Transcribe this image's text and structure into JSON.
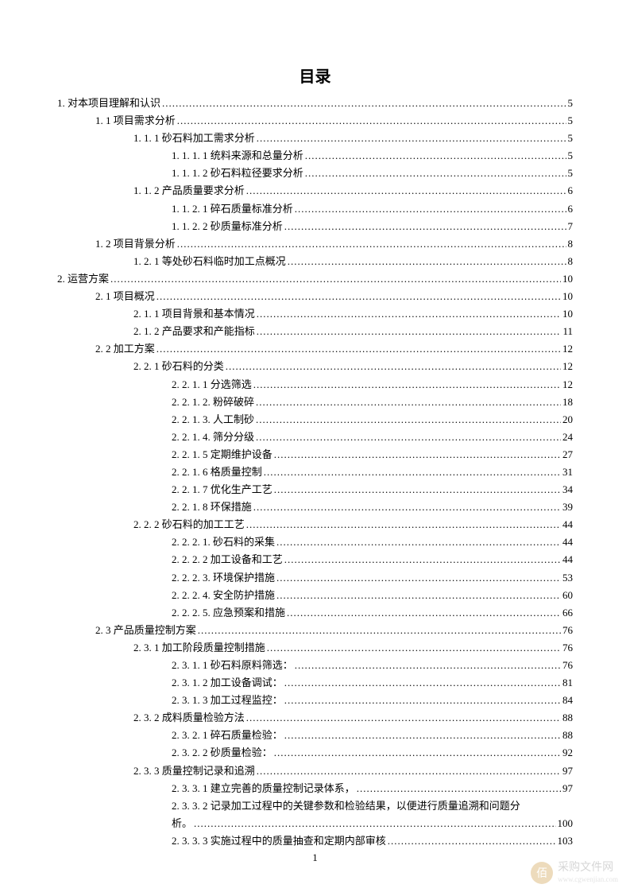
{
  "title": "目录",
  "page_number": "1",
  "text_color": "#000000",
  "background_color": "#ffffff",
  "font_size_body": 13,
  "font_size_title": 20,
  "line_height": 1.7,
  "watermark": {
    "icon_bg": "#d4a85a",
    "icon_text": "佰",
    "main": "采购文件网",
    "sub": "www.cgwenjian.com"
  },
  "entries": [
    {
      "indent": 0,
      "text": "1. 对本项目理解和认识",
      "page": "5"
    },
    {
      "indent": 1,
      "text": "1. 1 项目需求分析",
      "page": "5"
    },
    {
      "indent": 2,
      "text": "1. 1. 1 砂石料加工需求分析",
      "page": "5"
    },
    {
      "indent": 3,
      "text": "1. 1. 1. 1 统料来源和总量分析",
      "page": "5"
    },
    {
      "indent": 3,
      "text": "1. 1. 1. 2 砂石料粒径要求分析",
      "page": "5"
    },
    {
      "indent": 2,
      "text": "1. 1. 2 产品质量要求分析",
      "page": "6"
    },
    {
      "indent": 3,
      "text": "1. 1. 2. 1 碎石质量标准分析",
      "page": "6"
    },
    {
      "indent": 3,
      "text": "1. 1. 2. 2 砂质量标准分析",
      "page": "7"
    },
    {
      "indent": 1,
      "text": "1. 2 项目背景分析",
      "page": "8"
    },
    {
      "indent": 2,
      "text": "1. 2. 1 等处砂石料临时加工点概况",
      "page": "8"
    },
    {
      "indent": 0,
      "text": "2. 运营方案",
      "page": "10"
    },
    {
      "indent": 1,
      "text": "2. 1 项目概况",
      "page": "10"
    },
    {
      "indent": 2,
      "text": "2. 1. 1 项目背景和基本情况",
      "page": "10"
    },
    {
      "indent": 2,
      "text": "2. 1. 2 产品要求和产能指标",
      "page": "11"
    },
    {
      "indent": 1,
      "text": "2. 2 加工方案",
      "page": "12"
    },
    {
      "indent": 2,
      "text": "2. 2. 1 砂石料的分类",
      "page": "12"
    },
    {
      "indent": 3,
      "text": "2. 2. 1. 1 分选筛选",
      "page": "12"
    },
    {
      "indent": 3,
      "text": "2. 2. 1. 2. 粉碎破碎",
      "page": "18"
    },
    {
      "indent": 3,
      "text": "2. 2. 1. 3. 人工制砂",
      "page": "20"
    },
    {
      "indent": 3,
      "text": "2. 2. 1. 4. 筛分分级",
      "page": "24"
    },
    {
      "indent": 3,
      "text": "2. 2. 1. 5 定期维护设备",
      "page": "27"
    },
    {
      "indent": 3,
      "text": "2. 2. 1. 6 格质量控制",
      "page": "31"
    },
    {
      "indent": 3,
      "text": "2. 2. 1. 7 优化生产工艺",
      "page": "34"
    },
    {
      "indent": 3,
      "text": "2. 2. 1. 8 环保措施",
      "page": "39"
    },
    {
      "indent": 2,
      "text": "2. 2. 2 砂石料的加工工艺",
      "page": "44"
    },
    {
      "indent": 3,
      "text": "2. 2. 2. 1. 砂石料的采集",
      "page": "44"
    },
    {
      "indent": 3,
      "text": "2. 2. 2. 2 加工设备和工艺",
      "page": "44"
    },
    {
      "indent": 3,
      "text": "2. 2. 2. 3. 环境保护措施",
      "page": "53"
    },
    {
      "indent": 3,
      "text": "2. 2. 2. 4. 安全防护措施",
      "page": "60"
    },
    {
      "indent": 3,
      "text": "2. 2. 2. 5. 应急预案和措施",
      "page": "66"
    },
    {
      "indent": 1,
      "text": "2. 3 产品质量控制方案",
      "page": "76"
    },
    {
      "indent": 2,
      "text": "2. 3. 1 加工阶段质量控制措施",
      "page": "76"
    },
    {
      "indent": 3,
      "text": "2. 3. 1. 1 砂石料原料筛选：",
      "page": "76"
    },
    {
      "indent": 3,
      "text": "2. 3. 1. 2 加工设备调试：",
      "page": "81"
    },
    {
      "indent": 3,
      "text": "2. 3. 1. 3 加工过程监控：",
      "page": "84"
    },
    {
      "indent": 2,
      "text": "2. 3. 2 成料质量检验方法",
      "page": "88"
    },
    {
      "indent": 3,
      "text": "2. 3. 2. 1 碎石质量检验：",
      "page": "88"
    },
    {
      "indent": 3,
      "text": "2. 3. 2. 2 砂质量检验：",
      "page": "92"
    },
    {
      "indent": 2,
      "text": "2. 3. 3 质量控制记录和追溯",
      "page": "97"
    },
    {
      "indent": 3,
      "text": "2. 3. 3. 1 建立完善的质量控制记录体系，",
      "page": "97"
    },
    {
      "indent": 3,
      "text": "2. 3. 3. 2 记录加工过程中的关键参数和检验结果，以便进行质量追溯和问题分析。",
      "page": "100",
      "multiline": true
    },
    {
      "indent": 3,
      "text": "2. 3. 3. 3 实施过程中的质量抽查和定期内部审核",
      "page": "103"
    }
  ]
}
